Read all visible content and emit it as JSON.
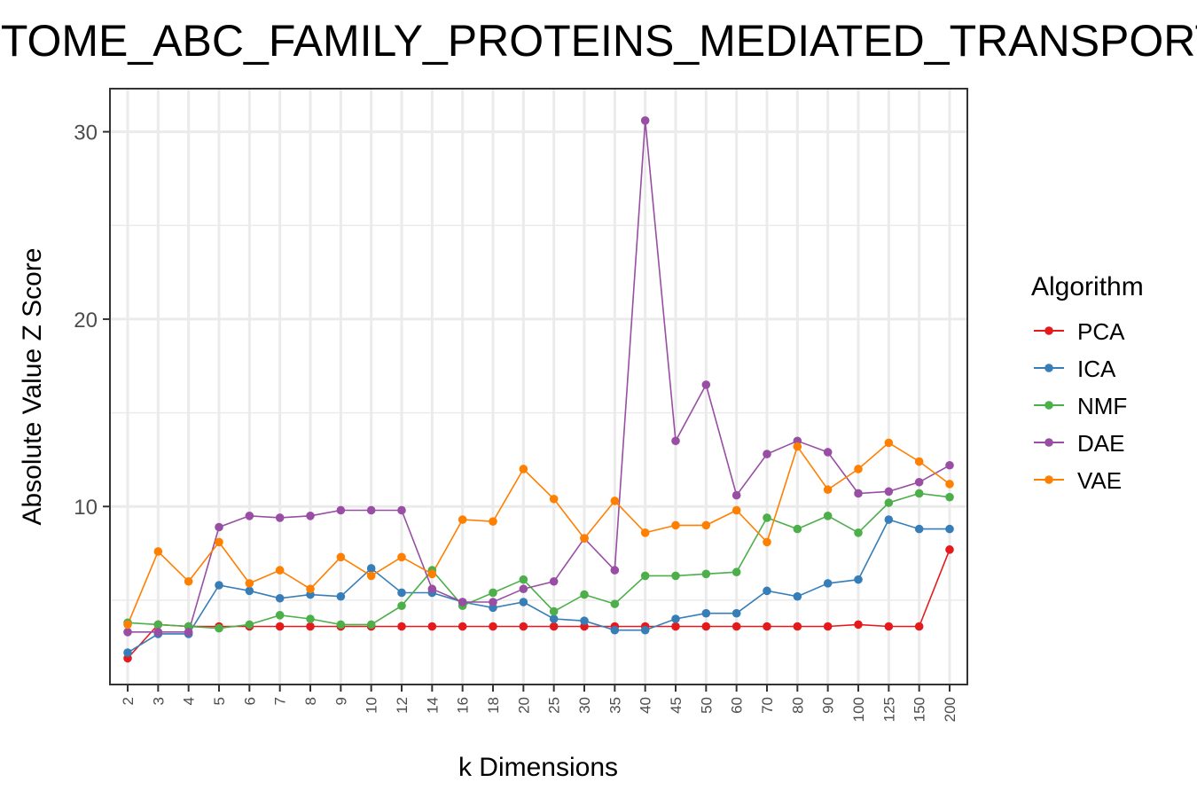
{
  "chart_data": {
    "type": "line",
    "title": "REACTOME_ABC_FAMILY_PROTEINS_MEDIATED_TRANSPORT",
    "xlabel": "k Dimensions",
    "ylabel": "Absolute Value Z Score",
    "categories": [
      "2",
      "3",
      "4",
      "5",
      "6",
      "7",
      "8",
      "9",
      "10",
      "12",
      "14",
      "16",
      "18",
      "20",
      "25",
      "30",
      "35",
      "40",
      "45",
      "50",
      "60",
      "70",
      "80",
      "90",
      "100",
      "125",
      "150",
      "200"
    ],
    "yticks": [
      10,
      20,
      30
    ],
    "ylim": [
      0.5,
      32.3
    ],
    "grid": true,
    "legend_title": "Algorithm",
    "legend_position": "right",
    "series": [
      {
        "name": "PCA",
        "color": "#e41a1c",
        "values": [
          1.9,
          3.7,
          3.6,
          3.6,
          3.6,
          3.6,
          3.6,
          3.6,
          3.6,
          3.6,
          3.6,
          3.6,
          3.6,
          3.6,
          3.6,
          3.6,
          3.6,
          3.6,
          3.6,
          3.6,
          3.6,
          3.6,
          3.6,
          3.6,
          3.7,
          3.6,
          3.6,
          7.7
        ]
      },
      {
        "name": "ICA",
        "color": "#377eb8",
        "values": [
          2.2,
          3.2,
          3.2,
          5.8,
          5.5,
          5.1,
          5.3,
          5.2,
          6.7,
          5.4,
          5.4,
          4.9,
          4.6,
          4.9,
          4.0,
          3.9,
          3.4,
          3.4,
          4.0,
          4.3,
          4.3,
          5.5,
          5.2,
          5.9,
          6.1,
          9.3,
          8.8,
          8.8
        ]
      },
      {
        "name": "NMF",
        "color": "#4daf4a",
        "values": [
          3.8,
          3.7,
          3.6,
          3.5,
          3.7,
          4.2,
          4.0,
          3.7,
          3.7,
          4.7,
          6.6,
          4.7,
          5.4,
          6.1,
          4.4,
          5.3,
          4.8,
          6.3,
          6.3,
          6.4,
          6.5,
          9.4,
          8.8,
          9.5,
          8.6,
          10.2,
          10.7,
          10.5
        ]
      },
      {
        "name": "DAE",
        "color": "#984ea3",
        "values": [
          3.3,
          3.3,
          3.3,
          8.9,
          9.5,
          9.4,
          9.5,
          9.8,
          9.8,
          9.8,
          5.6,
          4.9,
          4.9,
          5.6,
          6.0,
          8.3,
          6.6,
          30.6,
          13.5,
          16.5,
          10.6,
          12.8,
          13.5,
          12.9,
          10.7,
          10.8,
          11.3,
          12.2
        ]
      },
      {
        "name": "VAE",
        "color": "#ff7f00",
        "values": [
          3.7,
          7.6,
          6.0,
          8.1,
          5.9,
          6.6,
          5.6,
          7.3,
          6.3,
          7.3,
          6.4,
          9.3,
          9.2,
          12.0,
          10.4,
          8.3,
          10.3,
          8.6,
          9.0,
          9.0,
          9.8,
          8.1,
          13.2,
          10.9,
          12.0,
          13.4,
          12.4,
          11.2
        ]
      }
    ]
  }
}
